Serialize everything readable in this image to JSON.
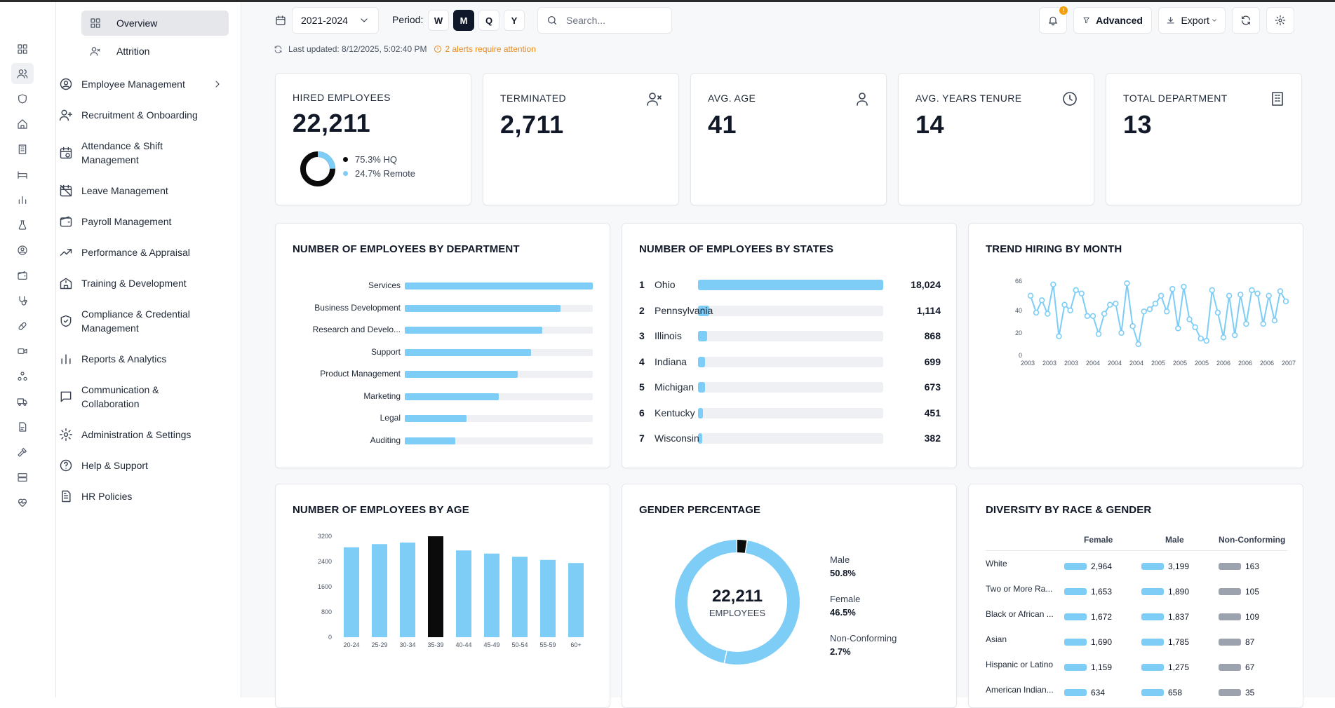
{
  "sidebar": {
    "sub_items": [
      {
        "label": "Overview"
      },
      {
        "label": "Attrition"
      }
    ],
    "items": [
      {
        "label": "Employee Management"
      },
      {
        "label": "Recruitment & Onboarding"
      },
      {
        "label": "Attendance & Shift",
        "label2": "Management"
      },
      {
        "label": "Leave Management"
      },
      {
        "label": "Payroll Management"
      },
      {
        "label": "Performance & Appraisal"
      },
      {
        "label": "Training & Development"
      },
      {
        "label": "Compliance & Credential",
        "label2": "Management"
      },
      {
        "label": "Reports & Analytics"
      },
      {
        "label": "Communication &",
        "label2": "Collaboration"
      },
      {
        "label": "Administration & Settings"
      },
      {
        "label": "Help & Support"
      },
      {
        "label": "HR Policies"
      }
    ]
  },
  "toolbar": {
    "date_range": "2021-2024",
    "period_label": "Period:",
    "periods": [
      "W",
      "M",
      "Q",
      "Y"
    ],
    "active_period": "M",
    "search_placeholder": "Search...",
    "advanced_label": "Advanced",
    "export_label": "Export",
    "notification_badge": "!"
  },
  "status": {
    "last_updated": "Last updated: 8/12/2025, 5:02:40 PM",
    "alerts": "2 alerts require attention"
  },
  "kpis": [
    {
      "title": "HIRED EMPLOYEES",
      "value": "22,211",
      "icon": "none"
    },
    {
      "title": "TERMINATED",
      "value": "2,711",
      "icon": "user-x-icon"
    },
    {
      "title": "AVG. AGE",
      "value": "41",
      "icon": "user-icon"
    },
    {
      "title": "AVG. YEARS TENURE",
      "value": "14",
      "icon": "clock-icon"
    },
    {
      "title": "TOTAL DEPARTMENT",
      "value": "13",
      "icon": "building-icon"
    }
  ],
  "hired_split": {
    "hq_label": "75.3% HQ",
    "remote_label": "24.7% Remote",
    "hq_pct": 75.3,
    "remote_pct": 24.7
  },
  "colors": {
    "accent": "#7dcdf6",
    "dark": "#0b0b0b",
    "gray": "#9ca3af"
  },
  "chart_data": [
    {
      "type": "bar",
      "title": "NUMBER OF EMPLOYEES BY DEPARTMENT",
      "orientation": "horizontal",
      "categories": [
        "Services",
        "Business Development",
        "Research and Develo...",
        "Support",
        "Product Management",
        "Marketing",
        "Legal",
        "Auditing"
      ],
      "values": [
        100,
        83,
        73,
        67,
        60,
        50,
        33,
        27
      ],
      "xlim": [
        0,
        100
      ]
    },
    {
      "type": "bar",
      "title": "NUMBER OF EMPLOYEES BY STATES",
      "orientation": "horizontal",
      "ranks": [
        "1",
        "2",
        "3",
        "4",
        "5",
        "6",
        "7"
      ],
      "categories": [
        "Ohio",
        "Pennsylvania",
        "Illinois",
        "Indiana",
        "Michigan",
        "Kentucky",
        "Wisconsin"
      ],
      "values": [
        18024,
        1114,
        868,
        699,
        673,
        451,
        382
      ],
      "value_labels": [
        "18,024",
        "1,114",
        "868",
        "699",
        "673",
        "451",
        "382"
      ]
    },
    {
      "type": "line",
      "title": "TREND HIRING BY MONTH",
      "yticks": [
        "66",
        "40",
        "20",
        "0"
      ],
      "ylim": [
        0,
        66
      ],
      "xticks": [
        "2003",
        "2003",
        "2003",
        "2004",
        "2004",
        "2004",
        "2005",
        "2005",
        "2005",
        "2006",
        "2006",
        "2006",
        "2007"
      ],
      "values": [
        53,
        38,
        49,
        37,
        63,
        17,
        45,
        40,
        58,
        55,
        35,
        35,
        19,
        37,
        45,
        46,
        20,
        64,
        26,
        10,
        39,
        41,
        46,
        53,
        39,
        59,
        24,
        61,
        32,
        25,
        15,
        13,
        58,
        38,
        16,
        53,
        18,
        54,
        28,
        58,
        55,
        28,
        53,
        31,
        57,
        48
      ]
    },
    {
      "type": "bar",
      "title": "NUMBER OF EMPLOYEES BY AGE",
      "categories": [
        "20-24",
        "25-29",
        "30-34",
        "35-39",
        "40-44",
        "45-49",
        "50-54",
        "55-59",
        "60+"
      ],
      "values": [
        2850,
        2950,
        3000,
        3200,
        2750,
        2650,
        2550,
        2450,
        2350
      ],
      "highlight_index": 3,
      "yticks": [
        "3200",
        "2400",
        "1600",
        "800",
        "0"
      ],
      "ylim": [
        0,
        3200
      ]
    },
    {
      "type": "pie",
      "title": "GENDER PERCENTAGE",
      "center_value": "22,211",
      "center_label": "EMPLOYEES",
      "slices": [
        {
          "name": "Male",
          "value": 50.8,
          "label": "50.8%",
          "color": "#7dcdf6"
        },
        {
          "name": "Female",
          "value": 46.5,
          "label": "46.5%",
          "color": "#7dcdf6"
        },
        {
          "name": "Non-Conforming",
          "value": 2.7,
          "label": "2.7%",
          "color": "#0b0b0b"
        }
      ]
    },
    {
      "type": "table",
      "title": "DIVERSITY BY RACE & GENDER",
      "columns": [
        "Female",
        "Male",
        "Non-Conforming"
      ],
      "rows": [
        {
          "name": "White",
          "values": [
            "2,964",
            "3,199",
            "163"
          ]
        },
        {
          "name": "Two or More Ra...",
          "values": [
            "1,653",
            "1,890",
            "105"
          ]
        },
        {
          "name": "Black or African ...",
          "values": [
            "1,672",
            "1,837",
            "109"
          ]
        },
        {
          "name": "Asian",
          "values": [
            "1,690",
            "1,785",
            "87"
          ]
        },
        {
          "name": "Hispanic or Latino",
          "values": [
            "1,159",
            "1,275",
            "67"
          ]
        },
        {
          "name": "American Indian...",
          "values": [
            "634",
            "658",
            "35"
          ]
        }
      ]
    }
  ]
}
